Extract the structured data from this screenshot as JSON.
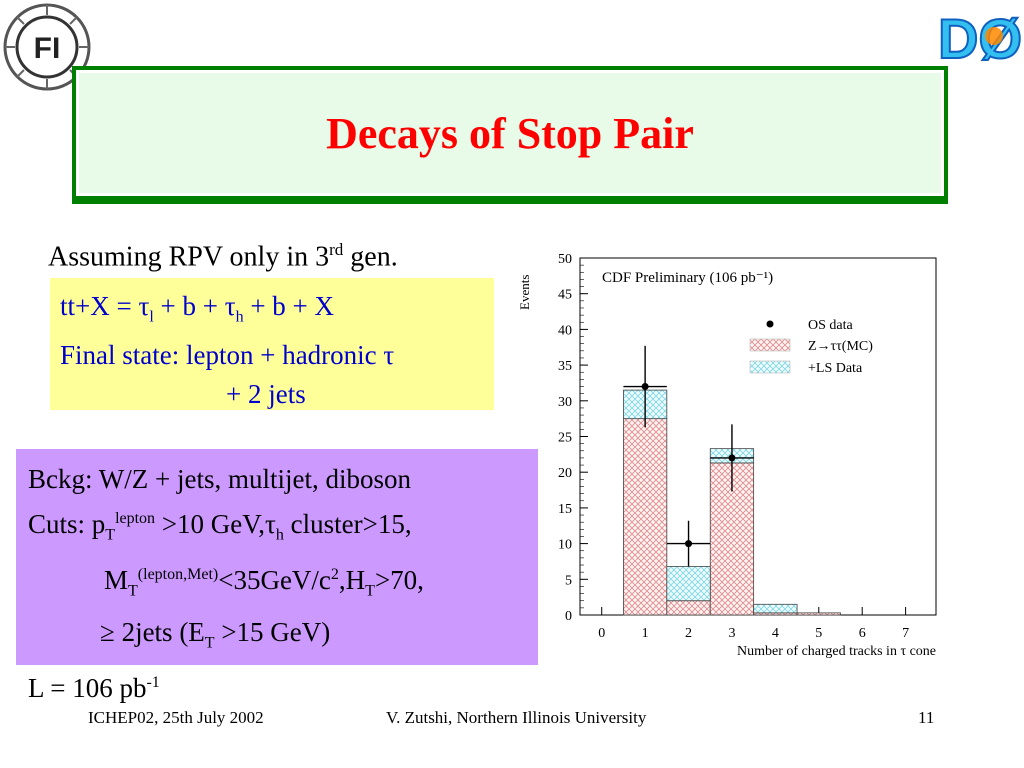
{
  "logos": {
    "left_text": "FI",
    "right_text": "DØ"
  },
  "slide": {
    "title": "Decays of Stop Pair",
    "assumption": {
      "pre": "Assuming RPV only in 3",
      "sup": "rd",
      "post": " gen."
    },
    "box1": {
      "line1": {
        "p1": "tt+X = τ",
        "s1": "l",
        "p2": " + b + τ",
        "s2": "h",
        "p3": " + b + X"
      },
      "line2": "Final state: lepton + hadronic τ",
      "line3": "+ 2 jets"
    },
    "box2": {
      "line1": "Bckg: W/Z + jets, multijet, diboson",
      "line2": {
        "p1": "Cuts: p",
        "sub1": "T",
        "sup1": "lepton",
        "p2": " >10 GeV,τ",
        "sub2": "h",
        "p3": " cluster>15,"
      },
      "line3": {
        "p1": "M",
        "sub1": "T",
        "sup1": "(lepton,Met)",
        "p2": "<35GeV/c",
        "sup2": "2",
        "p3": ",H",
        "sub2": "T",
        "p4": ">70,"
      },
      "line4": {
        "p1": "≥ 2jets (E",
        "sub1": "T",
        "p2": " >15 GeV)"
      },
      "line5": {
        "p1": "L = 106 pb",
        "sup1": "-1"
      }
    }
  },
  "footer": {
    "left": "ICHEP02, 25th July 2002",
    "center": "V. Zutshi, Northern Illinois University",
    "page": "11"
  },
  "chart_data": {
    "type": "bar",
    "title": "CDF Preliminary (106 pb⁻¹)",
    "xlabel": "Number of charged tracks in τ cone",
    "ylabel": "Events",
    "categories": [
      "0",
      "1",
      "2",
      "3",
      "4",
      "5",
      "6",
      "7"
    ],
    "y_ticks": [
      "0",
      "5",
      "10",
      "15",
      "20",
      "25",
      "30",
      "35",
      "40",
      "45",
      "50"
    ],
    "ylim": [
      0,
      50
    ],
    "stacked": true,
    "series": [
      {
        "name": "Z→ττ(MC)",
        "values": [
          0,
          27.5,
          2,
          21.3,
          0.3,
          0.3,
          0,
          0
        ],
        "color": "#e8a0a0"
      },
      {
        "name": "+LS Data",
        "values": [
          0,
          4,
          4.8,
          2,
          1.2,
          0,
          0,
          0
        ],
        "color": "#9ee3ec"
      }
    ],
    "points": {
      "name": "OS data",
      "values": [
        null,
        32,
        10,
        22,
        null,
        null,
        null,
        null
      ],
      "errors": [
        null,
        5.7,
        3.2,
        4.7,
        null,
        null,
        null,
        null
      ]
    },
    "legend": "top-right"
  }
}
